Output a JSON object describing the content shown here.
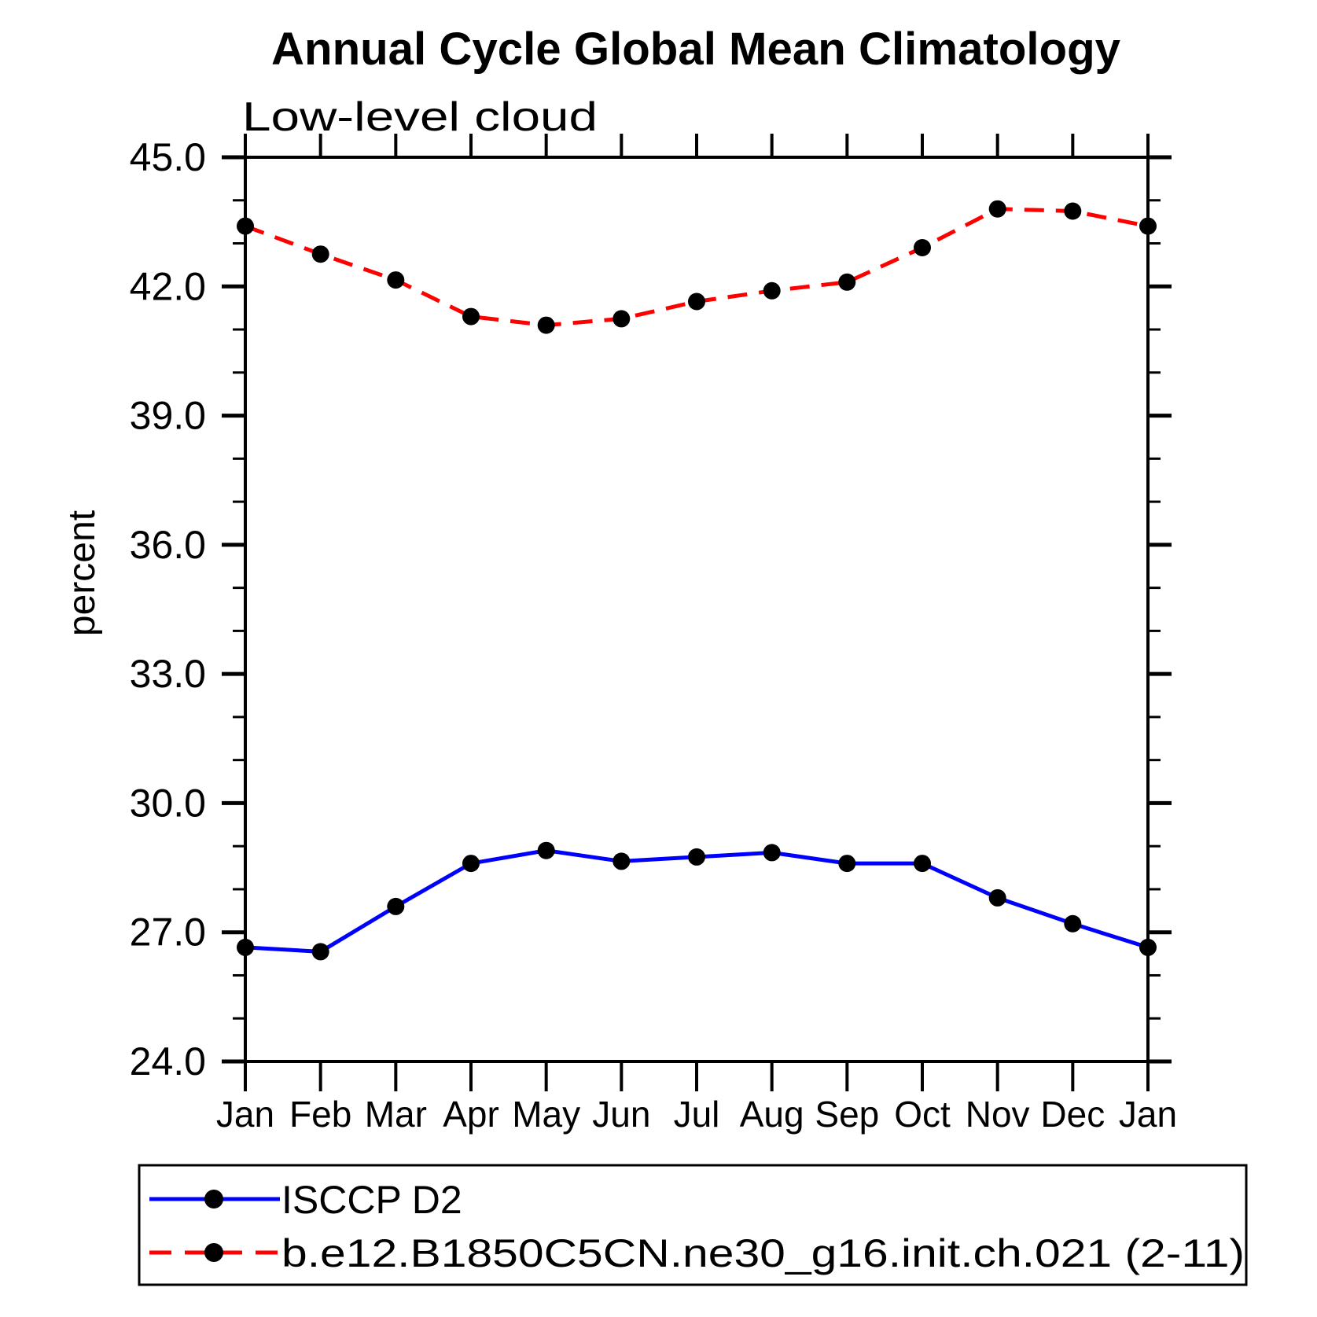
{
  "title": "Annual Cycle Global Mean Climatology",
  "subtitle": "Low-level cloud",
  "ylabel": "percent",
  "colors": {
    "obs_line": "#0000ff",
    "model_line": "#ff0000",
    "marker": "#000000",
    "axis": "#000000",
    "background": "#ffffff"
  },
  "legend": {
    "entries": [
      {
        "label": "ISCCP D2",
        "line_style": "solid",
        "line_color": "#0000ff",
        "marker": "black-dot"
      },
      {
        "label": "b.e12.B1850C5CN.ne30_g16.init.ch.021 (2-11)",
        "line_style": "dashed",
        "line_color": "#ff0000",
        "marker": "black-dot"
      }
    ]
  },
  "chart_data": {
    "type": "line",
    "title": "Annual Cycle Global Mean Climatology",
    "subtitle": "Low-level cloud",
    "xlabel": "",
    "ylabel": "percent",
    "x": [
      "Jan",
      "Feb",
      "Mar",
      "Apr",
      "May",
      "Jun",
      "Jul",
      "Aug",
      "Sep",
      "Oct",
      "Nov",
      "Dec",
      "Jan"
    ],
    "series": [
      {
        "name": "ISCCP D2",
        "color": "#0000ff",
        "style": "solid",
        "marker": "filled-circle",
        "marker_color": "#000000",
        "values": [
          26.65,
          26.55,
          27.6,
          28.6,
          28.9,
          28.65,
          28.75,
          28.85,
          28.6,
          28.6,
          27.8,
          27.2,
          26.65
        ]
      },
      {
        "name": "b.e12.B1850C5CN.ne30_g16.init.ch.021 (2-11)",
        "color": "#ff0000",
        "style": "dashed",
        "marker": "filled-circle",
        "marker_color": "#000000",
        "values": [
          43.4,
          42.75,
          42.15,
          41.3,
          41.1,
          41.25,
          41.65,
          41.9,
          42.1,
          42.9,
          43.8,
          43.75,
          43.4
        ]
      }
    ],
    "ylim": [
      24.0,
      45.0
    ],
    "yticks_major": [
      24.0,
      27.0,
      30.0,
      33.0,
      36.0,
      39.0,
      42.0,
      45.0
    ],
    "ytick_labels": [
      "24.0",
      "27.0",
      "30.0",
      "33.0",
      "36.0",
      "39.0",
      "42.0",
      "45.0"
    ],
    "ytick_minor_step": 1.0,
    "grid": false,
    "legend_position": "bottom-left-framed-box"
  }
}
